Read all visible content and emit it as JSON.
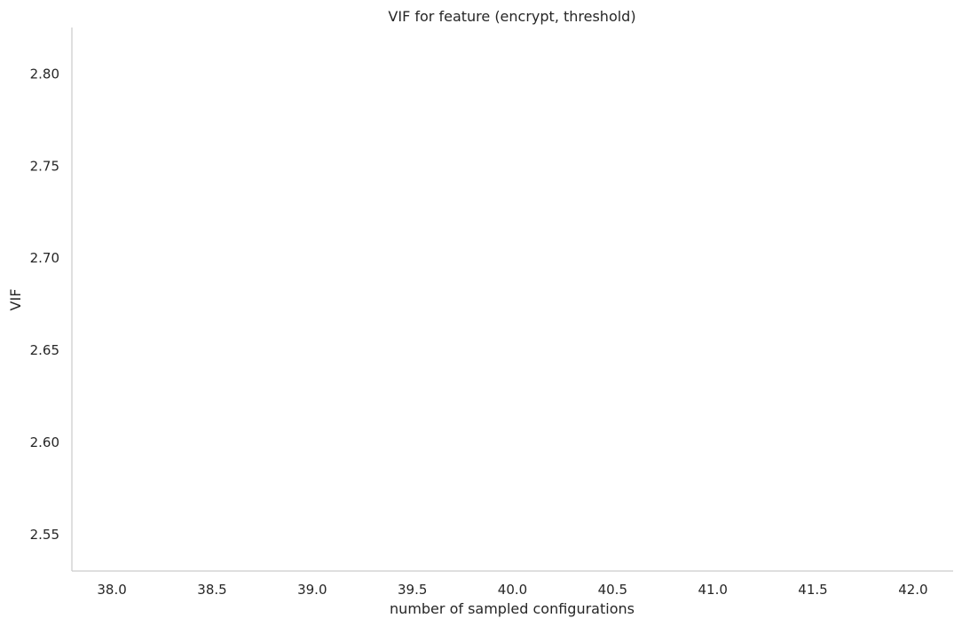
{
  "chart_data": {
    "type": "line",
    "title": "VIF for feature (encrypt, threshold)",
    "xlabel": "number of sampled configurations",
    "ylabel": "VIF",
    "xlim": [
      37.8,
      42.2
    ],
    "ylim": [
      2.53,
      2.825
    ],
    "xticks": [
      38.0,
      38.5,
      39.0,
      39.5,
      40.0,
      40.5,
      41.0,
      41.5,
      42.0
    ],
    "xtick_labels": [
      "38.0",
      "38.5",
      "39.0",
      "39.5",
      "40.0",
      "40.5",
      "41.0",
      "41.5",
      "42.0"
    ],
    "yticks": [
      2.55,
      2.6,
      2.65,
      2.7,
      2.75,
      2.8
    ],
    "ytick_labels": [
      "2.55",
      "2.60",
      "2.65",
      "2.70",
      "2.75",
      "2.80"
    ],
    "series": [],
    "grid": false,
    "legend": "none",
    "colors": {
      "text": "#262626",
      "spine": "#cccccc",
      "background": "#ffffff"
    }
  }
}
